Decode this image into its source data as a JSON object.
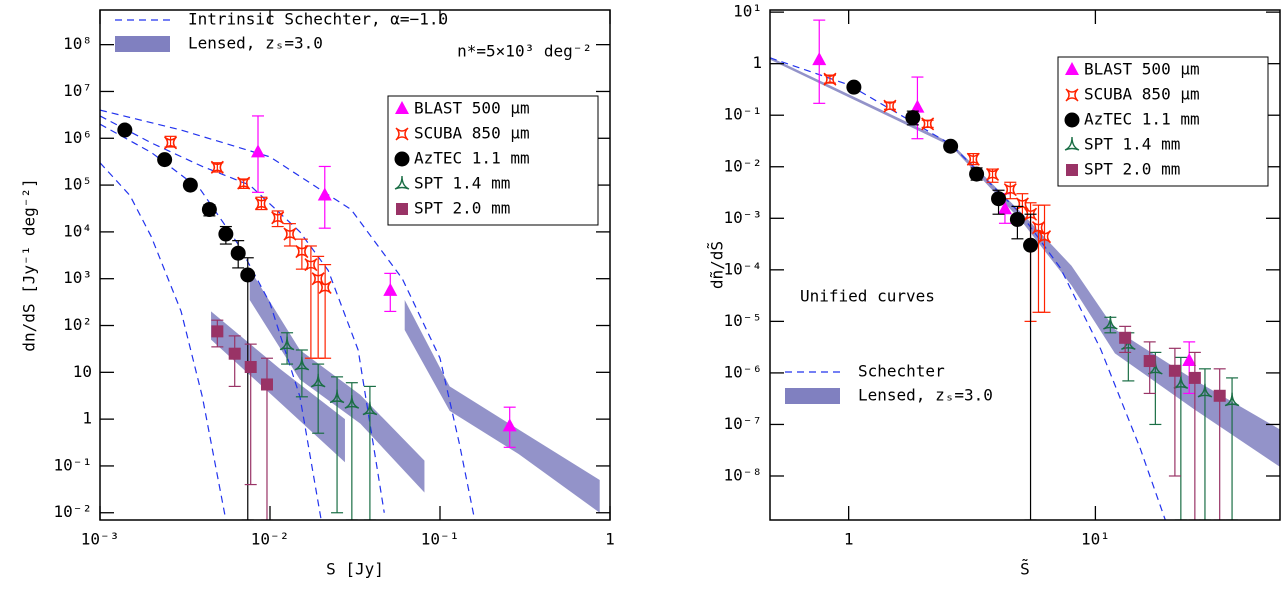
{
  "chart_data": [
    {
      "type": "scatter",
      "xscale": "log",
      "yscale": "log",
      "xlabel": "S [Jy]",
      "ylabel": "dn/dS [Jy⁻¹ deg⁻²]",
      "xlim": [
        0.001,
        1
      ],
      "ylim": [
        0.007,
        550000000
      ],
      "xticks": [
        {
          "value": 0.001,
          "label": "10⁻³"
        },
        {
          "value": 0.01,
          "label": "10⁻²"
        },
        {
          "value": 0.1,
          "label": "10⁻¹"
        },
        1
      ],
      "yticks": [
        {
          "value": 0.01,
          "label": "10⁻²"
        },
        {
          "value": 0.1,
          "label": "10⁻¹"
        },
        1,
        10,
        {
          "value": 100,
          "label": "10²"
        },
        {
          "value": 1000,
          "label": "10³"
        },
        {
          "value": 10000,
          "label": "10⁴"
        },
        {
          "value": 100000,
          "label": "10⁵"
        },
        {
          "value": 1000000,
          "label": "10⁶"
        },
        {
          "value": 10000000,
          "label": "10⁷"
        },
        {
          "value": 100000000,
          "label": "10⁸"
        }
      ],
      "legend": "upper right",
      "curve_legend": "upper left",
      "annotations": [
        "n*=5×10³ deg⁻²"
      ],
      "series": [
        {
          "name": "BLAST 500 μm",
          "color": "#ff00ff",
          "marker": "triangle",
          "x": [
            0.0085,
            0.021,
            0.051,
            0.257
          ],
          "values": [
            500000,
            60000,
            550,
            0.7
          ],
          "lower": [
            70000,
            12000,
            200,
            0.25
          ],
          "upper": [
            3000000,
            250000,
            1300,
            1.8
          ]
        },
        {
          "name": "SCUBA 850 μm",
          "color": "#ff2200",
          "marker": "star",
          "x": [
            0.0026,
            0.0049,
            0.007,
            0.0089,
            0.0111,
            0.0131,
            0.0154,
            0.0174,
            0.0192,
            0.0211
          ],
          "values": [
            800000,
            240000,
            110000,
            40000,
            20000,
            9000,
            3800,
            2000,
            1000,
            650
          ],
          "lower": [
            650000,
            190000,
            85000,
            30000,
            13000,
            5000,
            1600,
            20,
            20,
            20
          ],
          "upper": [
            1100000,
            300000,
            135000,
            55000,
            28000,
            15000,
            7000,
            5000,
            3000,
            2000
          ]
        },
        {
          "name": "AzTEC 1.1 mm",
          "color": "#000000",
          "marker": "circle",
          "x": [
            0.0014,
            0.0024,
            0.0034,
            0.0044,
            0.0055,
            0.0065,
            0.0074
          ],
          "values": [
            1500000,
            350000,
            100000,
            30000,
            9000,
            3500,
            1200
          ],
          "lower": [
            1300000,
            300000,
            85000,
            22000,
            5500,
            1700,
            0.007
          ],
          "upper": [
            1800000,
            420000,
            120000,
            38000,
            13000,
            6500,
            2800
          ]
        },
        {
          "name": "SPT 1.4 mm",
          "color": "#1a6e45",
          "marker": "tri",
          "x": [
            0.0126,
            0.0154,
            0.0192,
            0.0248,
            0.0303,
            0.0387
          ],
          "values": [
            39,
            14.5,
            6.3,
            2.9,
            2.2,
            1.6
          ],
          "lower": [
            15,
            3,
            0.5,
            0.01,
            0.007,
            0.007
          ],
          "upper": [
            70,
            30,
            15,
            8,
            6,
            5
          ]
        },
        {
          "name": "SPT 2.0 mm",
          "color": "#993366",
          "marker": "square",
          "x": [
            0.0049,
            0.0062,
            0.0077,
            0.0096
          ],
          "values": [
            75,
            25,
            13,
            5.5
          ],
          "lower": [
            35,
            5,
            0.04,
            0.007
          ],
          "upper": [
            130,
            60,
            40,
            20
          ]
        }
      ],
      "curves": {
        "name": "Intrinsic Schechter, α=−1.0",
        "color": "#2233ee",
        "lines": [
          {
            "x": [
              0.001,
              0.003,
              0.01,
              0.03,
              0.06,
              0.1,
              0.13,
              0.16
            ],
            "values": [
              4000000,
              1500000,
              400000,
              30000,
              1000,
              20,
              0.3,
              0.007
            ]
          },
          {
            "x": [
              0.001,
              0.002,
              0.004,
              0.0076,
              0.015,
              0.022,
              0.033,
              0.047
            ],
            "values": [
              3000000,
              800000,
              250000,
              100000,
              10000,
              1500,
              30,
              0.01
            ]
          },
          {
            "x": [
              0.001,
              0.002,
              0.0039,
              0.0066,
              0.01,
              0.015,
              0.02
            ],
            "values": [
              2000000,
              500000,
              80000,
              5000,
              300,
              3,
              0.007
            ]
          },
          {
            "x": [
              0.001,
              0.0015,
              0.002,
              0.003,
              0.004,
              0.0055
            ],
            "values": [
              300000,
              60000,
              8000,
              200,
              3,
              0.007
            ]
          }
        ]
      },
      "bands": {
        "name": "Lensed, zₛ=3.0",
        "color": "#8080c0",
        "areas": [
          {
            "x": [
              0.0045,
              0.0114,
              0.0276
            ],
            "lower": [
              50,
              2.3,
              0.12
            ],
            "upper": [
              200,
              12,
              1
            ]
          },
          {
            "x": [
              0.0076,
              0.015,
              0.034,
              0.081
            ],
            "lower": [
              350,
              7,
              0.8,
              0.027
            ],
            "upper": [
              1600,
              30,
              3.3,
              0.13
            ]
          },
          {
            "x": [
              0.062,
              0.114,
              0.29,
              0.87
            ],
            "lower": [
              80,
              1.5,
              0.18,
              0.01
            ],
            "upper": [
              350,
              5,
              0.6,
              0.05
            ]
          }
        ]
      }
    },
    {
      "type": "scatter",
      "xscale": "log",
      "yscale": "log",
      "xlabel": "S̃",
      "ylabel": "dñ/dS̃",
      "xlim": [
        0.48,
        56
      ],
      "ylim": [
        1.4e-09,
        11
      ],
      "xticks": [
        1,
        {
          "value": 10,
          "label": "10¹"
        }
      ],
      "yticks": [
        {
          "value": 1e-08,
          "label": "10⁻⁸"
        },
        {
          "value": 1e-07,
          "label": "10⁻⁷"
        },
        {
          "value": 1e-06,
          "label": "10⁻⁶"
        },
        {
          "value": 1e-05,
          "label": "10⁻⁵"
        },
        {
          "value": 0.0001,
          "label": "10⁻⁴"
        },
        {
          "value": 0.001,
          "label": "10⁻³"
        },
        {
          "value": 0.01,
          "label": "10⁻²"
        },
        {
          "value": 0.1,
          "label": "10⁻¹"
        },
        1,
        {
          "value": 10,
          "label": "10¹"
        }
      ],
      "legend": "upper right",
      "curve_legend": "lower left",
      "annotations": [
        "Unified curves"
      ],
      "series": [
        {
          "name": "BLAST 500 μm",
          "color": "#ff00ff",
          "marker": "triangle",
          "x": [
            0.76,
            1.9,
            4.3,
            24
          ],
          "values": [
            1.17,
            0.14,
            0.0015,
            1.7e-06
          ],
          "lower": [
            0.17,
            0.035,
            0.0008,
            4e-07
          ],
          "upper": [
            7,
            0.55,
            0.003,
            4e-06
          ]
        },
        {
          "name": "SCUBA 850 μm",
          "color": "#ff2200",
          "marker": "star",
          "x": [
            0.84,
            1.47,
            2.09,
            3.2,
            3.83,
            4.52,
            5.06,
            5.46,
            5.88,
            6.22
          ],
          "values": [
            0.5,
            0.15,
            0.068,
            0.014,
            0.0071,
            0.0036,
            0.0019,
            0.0012,
            0.00066,
            0.00044
          ],
          "lower": [
            0.42,
            0.13,
            0.058,
            0.011,
            0.005,
            0.0024,
            0.001,
            1e-05,
            1.5e-05,
            1.5e-05
          ],
          "upper": [
            0.6,
            0.18,
            0.08,
            0.018,
            0.009,
            0.005,
            0.003,
            0.002,
            0.0018,
            0.0018
          ]
        },
        {
          "name": "AzTEC 1.1 mm",
          "color": "#000000",
          "marker": "circle",
          "x": [
            1.05,
            1.82,
            2.59,
            3.3,
            4.05,
            4.83,
            5.46
          ],
          "values": [
            0.35,
            0.09,
            0.025,
            0.0072,
            0.0024,
            0.00095,
            0.0003
          ],
          "lower": [
            0.32,
            0.065,
            0.021,
            0.0055,
            0.0012,
            0.0004,
            1.4e-09
          ],
          "upper": [
            0.39,
            0.12,
            0.03,
            0.0095,
            0.0035,
            0.0017,
            0.0012
          ]
        },
        {
          "name": "SPT 1.4 mm",
          "color": "#1a6e45",
          "marker": "tri",
          "x": [
            11.5,
            13.6,
            17.5,
            22.2,
            27.8,
            35.8
          ],
          "values": [
            8.9e-06,
            3.6e-06,
            1.2e-06,
            6.3e-07,
            4.3e-07,
            2.9e-07
          ],
          "lower": [
            6e-06,
            7e-07,
            1e-07,
            1.4e-09,
            1.4e-09,
            1.4e-09
          ],
          "upper": [
            1.2e-05,
            6e-06,
            2.5e-06,
            2e-06,
            1.2e-06,
            8e-07
          ]
        },
        {
          "name": "SPT 2.0 mm",
          "color": "#993366",
          "marker": "square",
          "x": [
            13.2,
            16.6,
            21,
            25.3,
            31.9
          ],
          "values": [
            4.8e-06,
            1.7e-06,
            1.1e-06,
            8e-07,
            3.6e-07
          ],
          "lower": [
            2.5e-06,
            4e-07,
            1e-08,
            1.4e-09,
            1.4e-09
          ],
          "upper": [
            8e-06,
            4e-06,
            3e-06,
            2.5e-06,
            1.2e-06
          ]
        }
      ],
      "curves": {
        "name": "Schechter",
        "color": "#2233ee",
        "lines": [
          {
            "x": [
              0.48,
              1,
              2.6,
              5,
              7.2,
              10.5,
              15.2,
              19.2
            ],
            "values": [
              1.3,
              0.39,
              0.027,
              0.0012,
              0.00011,
              2.9e-06,
              3.4e-08,
              1.4e-09
            ]
          }
        ]
      },
      "bands": {
        "name": "Lensed, zₛ=3.0",
        "color": "#8080c0",
        "areas": [
          {
            "x": [
              0.48,
              2.6,
              5,
              8,
              12,
              25,
              56
            ],
            "lower": [
              1.2,
              0.025,
              0.0009,
              5e-05,
              2.4e-06,
              2e-07,
              1.5e-08
            ],
            "upper": [
              1.35,
              0.029,
              0.0013,
              0.00012,
              7e-06,
              7.5e-07,
              8e-08
            ]
          }
        ]
      }
    }
  ]
}
